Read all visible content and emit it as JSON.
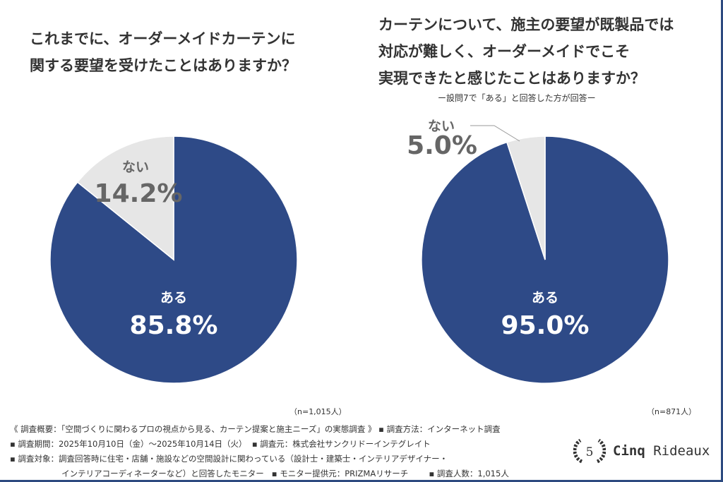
{
  "chart_data": [
    {
      "type": "pie",
      "title": "これまでに、オーダーメイドカーテンに\n関する要望を受けたことはありますか？",
      "categories": [
        "ある",
        "ない"
      ],
      "values": [
        85.8,
        14.2
      ],
      "value_labels": [
        "85.8%",
        "14.2%"
      ],
      "colors": [
        "#2e4a87",
        "#e6e6e6"
      ],
      "note": "（n=1,015人）"
    },
    {
      "type": "pie",
      "title": "カーテンについて、施主の要望が既製品では\n対応が難しく、オーダーメイドでこそ\n実現できたと感じたことはありますか？",
      "subtitle": "ー設問7で「ある」と回答した方が回答ー",
      "categories": [
        "ある",
        "ない"
      ],
      "values": [
        95.0,
        5.0
      ],
      "value_labels": [
        "95.0%",
        "5.0%"
      ],
      "colors": [
        "#2e4a87",
        "#e6e6e6"
      ],
      "note": "（n=871人）"
    }
  ],
  "footer": {
    "lines": [
      "《 調査概要：「空間づくりに関わるプロの視点から見る、カーテン提案と施主ニーズ」の実態調査 》 ▪ 調査方法：インターネット調査",
      "▪ 調査期間：2025年10月10日（金）〜2025年10月14日（火）  ▪ 調査元：株式会社サンクリドーインテグレイト",
      "▪ 調査対象：調査回答時に住宅・店舗・施設などの空間設計に関わっている（設計士・建築士・インテリアデザイナー・",
      "                    インテリアコーディネーターなど）と回答したモニター   ▪ モニター提供元：PRIZMAリサーチ        ▪ 調査人数：1,015人"
    ]
  },
  "logo": {
    "emblem": "5",
    "name_bold": "Cinq",
    "name": "Rideaux"
  }
}
